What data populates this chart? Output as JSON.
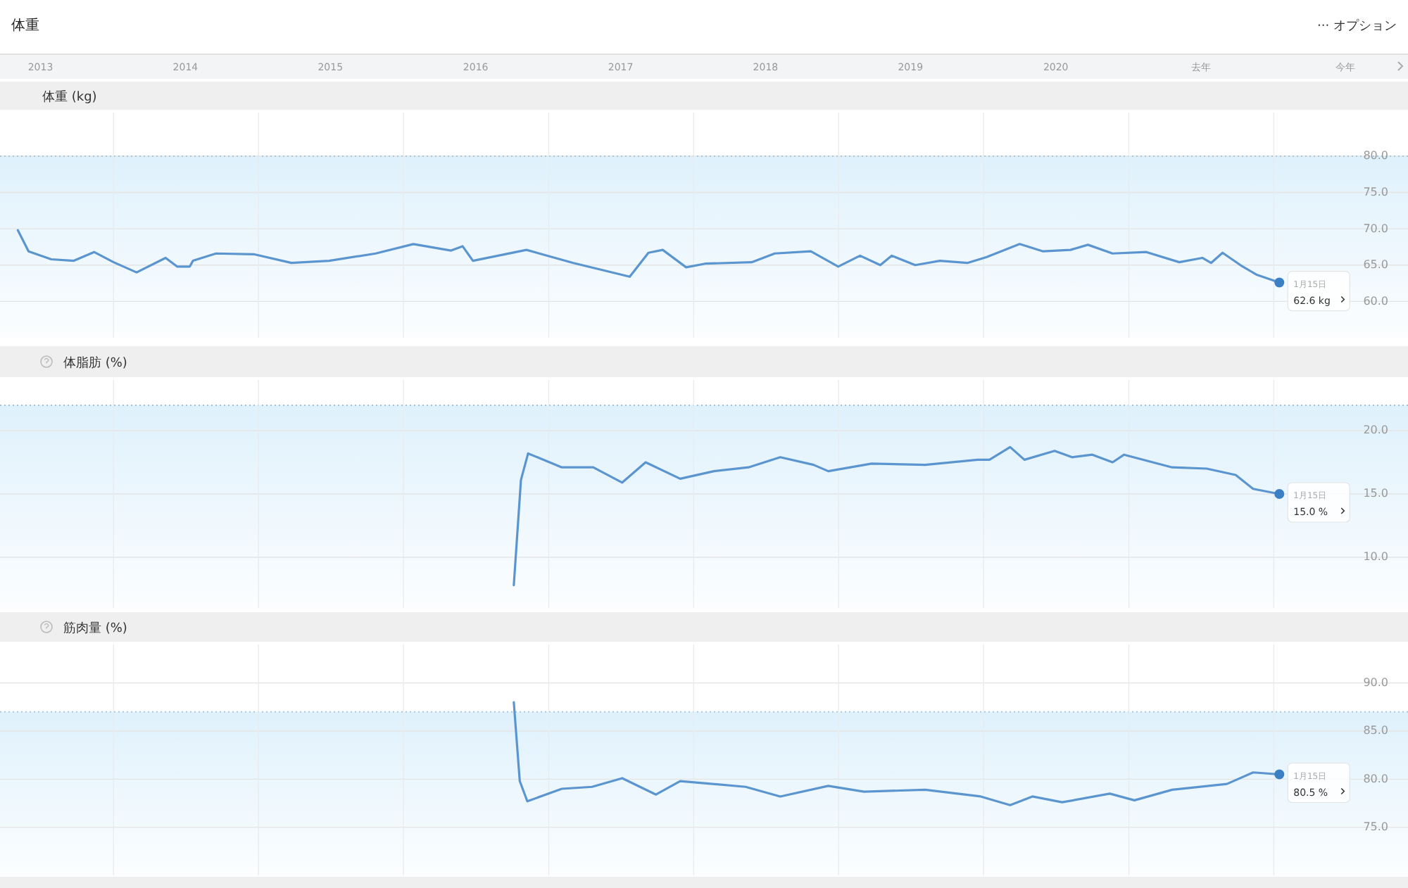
{
  "chart_data": [
    {
      "type": "line",
      "title": "体重",
      "ylabel": "体重 (kg)",
      "annotations": [
        "··· オプション",
        {
          "text": "1月15日",
          "x": "2022-01-15",
          "y": 62.6
        },
        {
          "text": "62.6 kg",
          "x": "2022-01-15",
          "y": 62.6
        }
      ],
      "xlim": [
        "2013-03-21",
        "2022-12-05"
      ],
      "xticks": [
        {
          "value": "2013-07-01",
          "label": "2013"
        },
        {
          "value": "2014-07-01",
          "label": "2014"
        },
        {
          "value": "2015-07-01",
          "label": "2015"
        },
        {
          "value": "2016-07-01",
          "label": "2016"
        },
        {
          "value": "2017-07-01",
          "label": "2017"
        },
        {
          "value": "2018-07-01",
          "label": "2018"
        },
        {
          "value": "2019-07-01",
          "label": "2019"
        },
        {
          "value": "2020-07-01",
          "label": "2020"
        },
        {
          "value": "2021-07-01",
          "label": "去年"
        },
        {
          "value": "2022-07-01",
          "label": "今年"
        }
      ],
      "ylim": [
        55,
        86
      ],
      "yticks": [
        {
          "value": 60,
          "label": "60.0"
        },
        {
          "value": 65,
          "label": "65.0"
        },
        {
          "value": 70,
          "label": "70.0"
        },
        {
          "value": 75,
          "label": "75.0"
        },
        {
          "value": 80,
          "label": "80.0"
        }
      ],
      "bands": [
        {
          "axis": "y",
          "from": 55,
          "to": 80,
          "color": "#dff1fc"
        }
      ],
      "ref_lines": [
        {
          "axis": "y",
          "value": 80,
          "color": "#9cc3e2",
          "line_style": "dotted"
        },
        {
          "axis": "x",
          "value": "2014-01-01",
          "color": "#ebebeb"
        },
        {
          "axis": "x",
          "value": "2015-01-01",
          "color": "#ebebeb"
        },
        {
          "axis": "x",
          "value": "2016-01-01",
          "color": "#ebebeb"
        },
        {
          "axis": "x",
          "value": "2017-01-01",
          "color": "#ebebeb"
        },
        {
          "axis": "x",
          "value": "2018-01-01",
          "color": "#ebebeb"
        },
        {
          "axis": "x",
          "value": "2019-01-01",
          "color": "#ebebeb"
        },
        {
          "axis": "x",
          "value": "2020-01-01",
          "color": "#ebebeb"
        },
        {
          "axis": "x",
          "value": "2021-01-01",
          "color": "#ebebeb"
        },
        {
          "axis": "x",
          "value": "2022-01-01",
          "color": "#ebebeb"
        }
      ],
      "grid": "y",
      "series": [
        {
          "color": "#5b95cf",
          "x": [
            "2013-05-05",
            "2013-06-01",
            "2013-07-28",
            "2013-09-23",
            "2013-11-13",
            "2014-01-01",
            "2014-02-28",
            "2014-05-12",
            "2014-06-10",
            "2014-07-12",
            "2014-07-20",
            "2014-09-16",
            "2014-12-20",
            "2015-03-25",
            "2015-06-28",
            "2015-10-23",
            "2016-01-26",
            "2016-04-30",
            "2016-05-29",
            "2016-06-24",
            "2016-11-06",
            "2017-03-04",
            "2017-07-24",
            "2017-09-09",
            "2017-10-15",
            "2017-12-13",
            "2018-01-30",
            "2018-05-27",
            "2018-07-24",
            "2018-10-23",
            "2018-12-31",
            "2019-02-24",
            "2019-04-16",
            "2019-05-15",
            "2019-07-13",
            "2019-09-13",
            "2019-11-21",
            "2020-01-08",
            "2020-04-01",
            "2020-05-30",
            "2020-08-07",
            "2020-09-20",
            "2020-11-21",
            "2021-02-14",
            "2021-05-08",
            "2021-07-05",
            "2021-07-27",
            "2021-08-25",
            "2021-10-09",
            "2021-11-18",
            "2022-01-15"
          ],
          "values": [
            69.8,
            66.9,
            65.8,
            65.6,
            66.8,
            65.4,
            64.0,
            66.0,
            64.8,
            64.8,
            65.6,
            66.6,
            66.5,
            65.3,
            65.6,
            66.6,
            67.9,
            67.0,
            67.6,
            65.6,
            67.1,
            65.3,
            63.4,
            66.7,
            67.1,
            64.7,
            65.2,
            65.4,
            66.6,
            66.9,
            64.8,
            66.3,
            65.0,
            66.3,
            65.0,
            65.6,
            65.3,
            66.1,
            67.9,
            66.9,
            67.1,
            67.8,
            66.6,
            66.8,
            65.4,
            66.0,
            65.3,
            66.7,
            65.0,
            63.7,
            62.6
          ]
        }
      ]
    },
    {
      "type": "line",
      "ylabel": "体脂肪 (%)",
      "annotations": [
        {
          "text": "1月15日",
          "x": "2022-01-15",
          "y": 15.0
        },
        {
          "text": "15.0 %",
          "x": "2022-01-15",
          "y": 15.0
        }
      ],
      "xlim": [
        "2013-03-21",
        "2022-12-05"
      ],
      "ylim": [
        6,
        24
      ],
      "yticks": [
        {
          "value": 10,
          "label": "10.0"
        },
        {
          "value": 15,
          "label": "15.0"
        },
        {
          "value": 20,
          "label": "20.0"
        }
      ],
      "bands": [
        {
          "axis": "y",
          "from": 6,
          "to": 22,
          "color": "#dff1fc"
        }
      ],
      "ref_lines": [
        {
          "axis": "y",
          "value": 22,
          "color": "#9cc3e2",
          "line_style": "dotted"
        },
        {
          "axis": "x",
          "value": "2014-01-01",
          "color": "#ebebeb"
        },
        {
          "axis": "x",
          "value": "2015-01-01",
          "color": "#ebebeb"
        },
        {
          "axis": "x",
          "value": "2016-01-01",
          "color": "#ebebeb"
        },
        {
          "axis": "x",
          "value": "2017-01-01",
          "color": "#ebebeb"
        },
        {
          "axis": "x",
          "value": "2018-01-01",
          "color": "#ebebeb"
        },
        {
          "axis": "x",
          "value": "2019-01-01",
          "color": "#ebebeb"
        },
        {
          "axis": "x",
          "value": "2020-01-01",
          "color": "#ebebeb"
        },
        {
          "axis": "x",
          "value": "2021-01-01",
          "color": "#ebebeb"
        },
        {
          "axis": "x",
          "value": "2022-01-01",
          "color": "#ebebeb"
        }
      ],
      "grid": "y",
      "tick_labels": "y",
      "series": [
        {
          "color": "#5b95cf",
          "x": [
            "2016-10-05",
            "2016-10-23",
            "2016-11-10",
            "2017-02-03",
            "2017-04-23",
            "2017-07-05",
            "2017-09-02",
            "2017-11-28",
            "2018-02-21",
            "2018-05-19",
            "2018-08-07",
            "2018-10-30",
            "2018-12-06",
            "2019-03-25",
            "2019-08-07",
            "2019-12-17",
            "2020-01-16",
            "2020-03-08",
            "2020-04-13",
            "2020-06-28",
            "2020-08-11",
            "2020-10-01",
            "2020-11-21",
            "2020-12-20",
            "2021-04-20",
            "2021-07-16",
            "2021-09-27",
            "2021-11-10",
            "2022-01-15"
          ],
          "values": [
            7.8,
            16.1,
            18.2,
            17.1,
            17.1,
            15.9,
            17.5,
            16.2,
            16.8,
            17.1,
            17.9,
            17.3,
            16.8,
            17.4,
            17.3,
            17.7,
            17.7,
            18.7,
            17.7,
            18.4,
            17.9,
            18.1,
            17.5,
            18.1,
            17.1,
            17.0,
            16.5,
            15.4,
            15.0
          ]
        }
      ]
    },
    {
      "type": "line",
      "ylabel": "筋肉量 (%)",
      "annotations": [
        {
          "text": "1月15日",
          "x": "2022-01-15",
          "y": 80.5
        },
        {
          "text": "80.5 %",
          "x": "2022-01-15",
          "y": 80.5
        }
      ],
      "xlim": [
        "2013-03-21",
        "2022-12-05"
      ],
      "ylim": [
        70,
        94
      ],
      "yticks": [
        {
          "value": 75,
          "label": "75.0"
        },
        {
          "value": 80,
          "label": "80.0"
        },
        {
          "value": 85,
          "label": "85.0"
        },
        {
          "value": 90,
          "label": "90.0"
        }
      ],
      "bands": [
        {
          "axis": "y",
          "from": 70,
          "to": 87,
          "color": "#dff1fc"
        }
      ],
      "ref_lines": [
        {
          "axis": "y",
          "value": 87,
          "color": "#9cc3e2",
          "line_style": "dotted"
        },
        {
          "axis": "x",
          "value": "2014-01-01",
          "color": "#ebebeb"
        },
        {
          "axis": "x",
          "value": "2015-01-01",
          "color": "#ebebeb"
        },
        {
          "axis": "x",
          "value": "2016-01-01",
          "color": "#ebebeb"
        },
        {
          "axis": "x",
          "value": "2017-01-01",
          "color": "#ebebeb"
        },
        {
          "axis": "x",
          "value": "2018-01-01",
          "color": "#ebebeb"
        },
        {
          "axis": "x",
          "value": "2019-01-01",
          "color": "#ebebeb"
        },
        {
          "axis": "x",
          "value": "2020-01-01",
          "color": "#ebebeb"
        },
        {
          "axis": "x",
          "value": "2021-01-01",
          "color": "#ebebeb"
        },
        {
          "axis": "x",
          "value": "2022-01-01",
          "color": "#ebebeb"
        }
      ],
      "grid": "y",
      "tick_labels": "y",
      "series": [
        {
          "color": "#5b95cf",
          "x": [
            "2016-10-05",
            "2016-10-20",
            "2016-11-08",
            "2017-02-03",
            "2017-04-20",
            "2017-07-05",
            "2017-09-28",
            "2017-11-28",
            "2018-05-12",
            "2018-08-07",
            "2018-12-06",
            "2019-03-06",
            "2019-08-07",
            "2019-12-25",
            "2020-03-08",
            "2020-05-03",
            "2020-07-17",
            "2020-11-14",
            "2021-01-15",
            "2021-04-20",
            "2021-09-05",
            "2021-11-10",
            "2022-01-15"
          ],
          "values": [
            88.0,
            79.8,
            77.7,
            79.0,
            79.2,
            80.1,
            78.4,
            79.8,
            79.2,
            78.2,
            79.3,
            78.7,
            78.9,
            78.2,
            77.3,
            78.2,
            77.6,
            78.5,
            77.8,
            78.9,
            79.5,
            80.7,
            80.5
          ]
        }
      ]
    }
  ]
}
